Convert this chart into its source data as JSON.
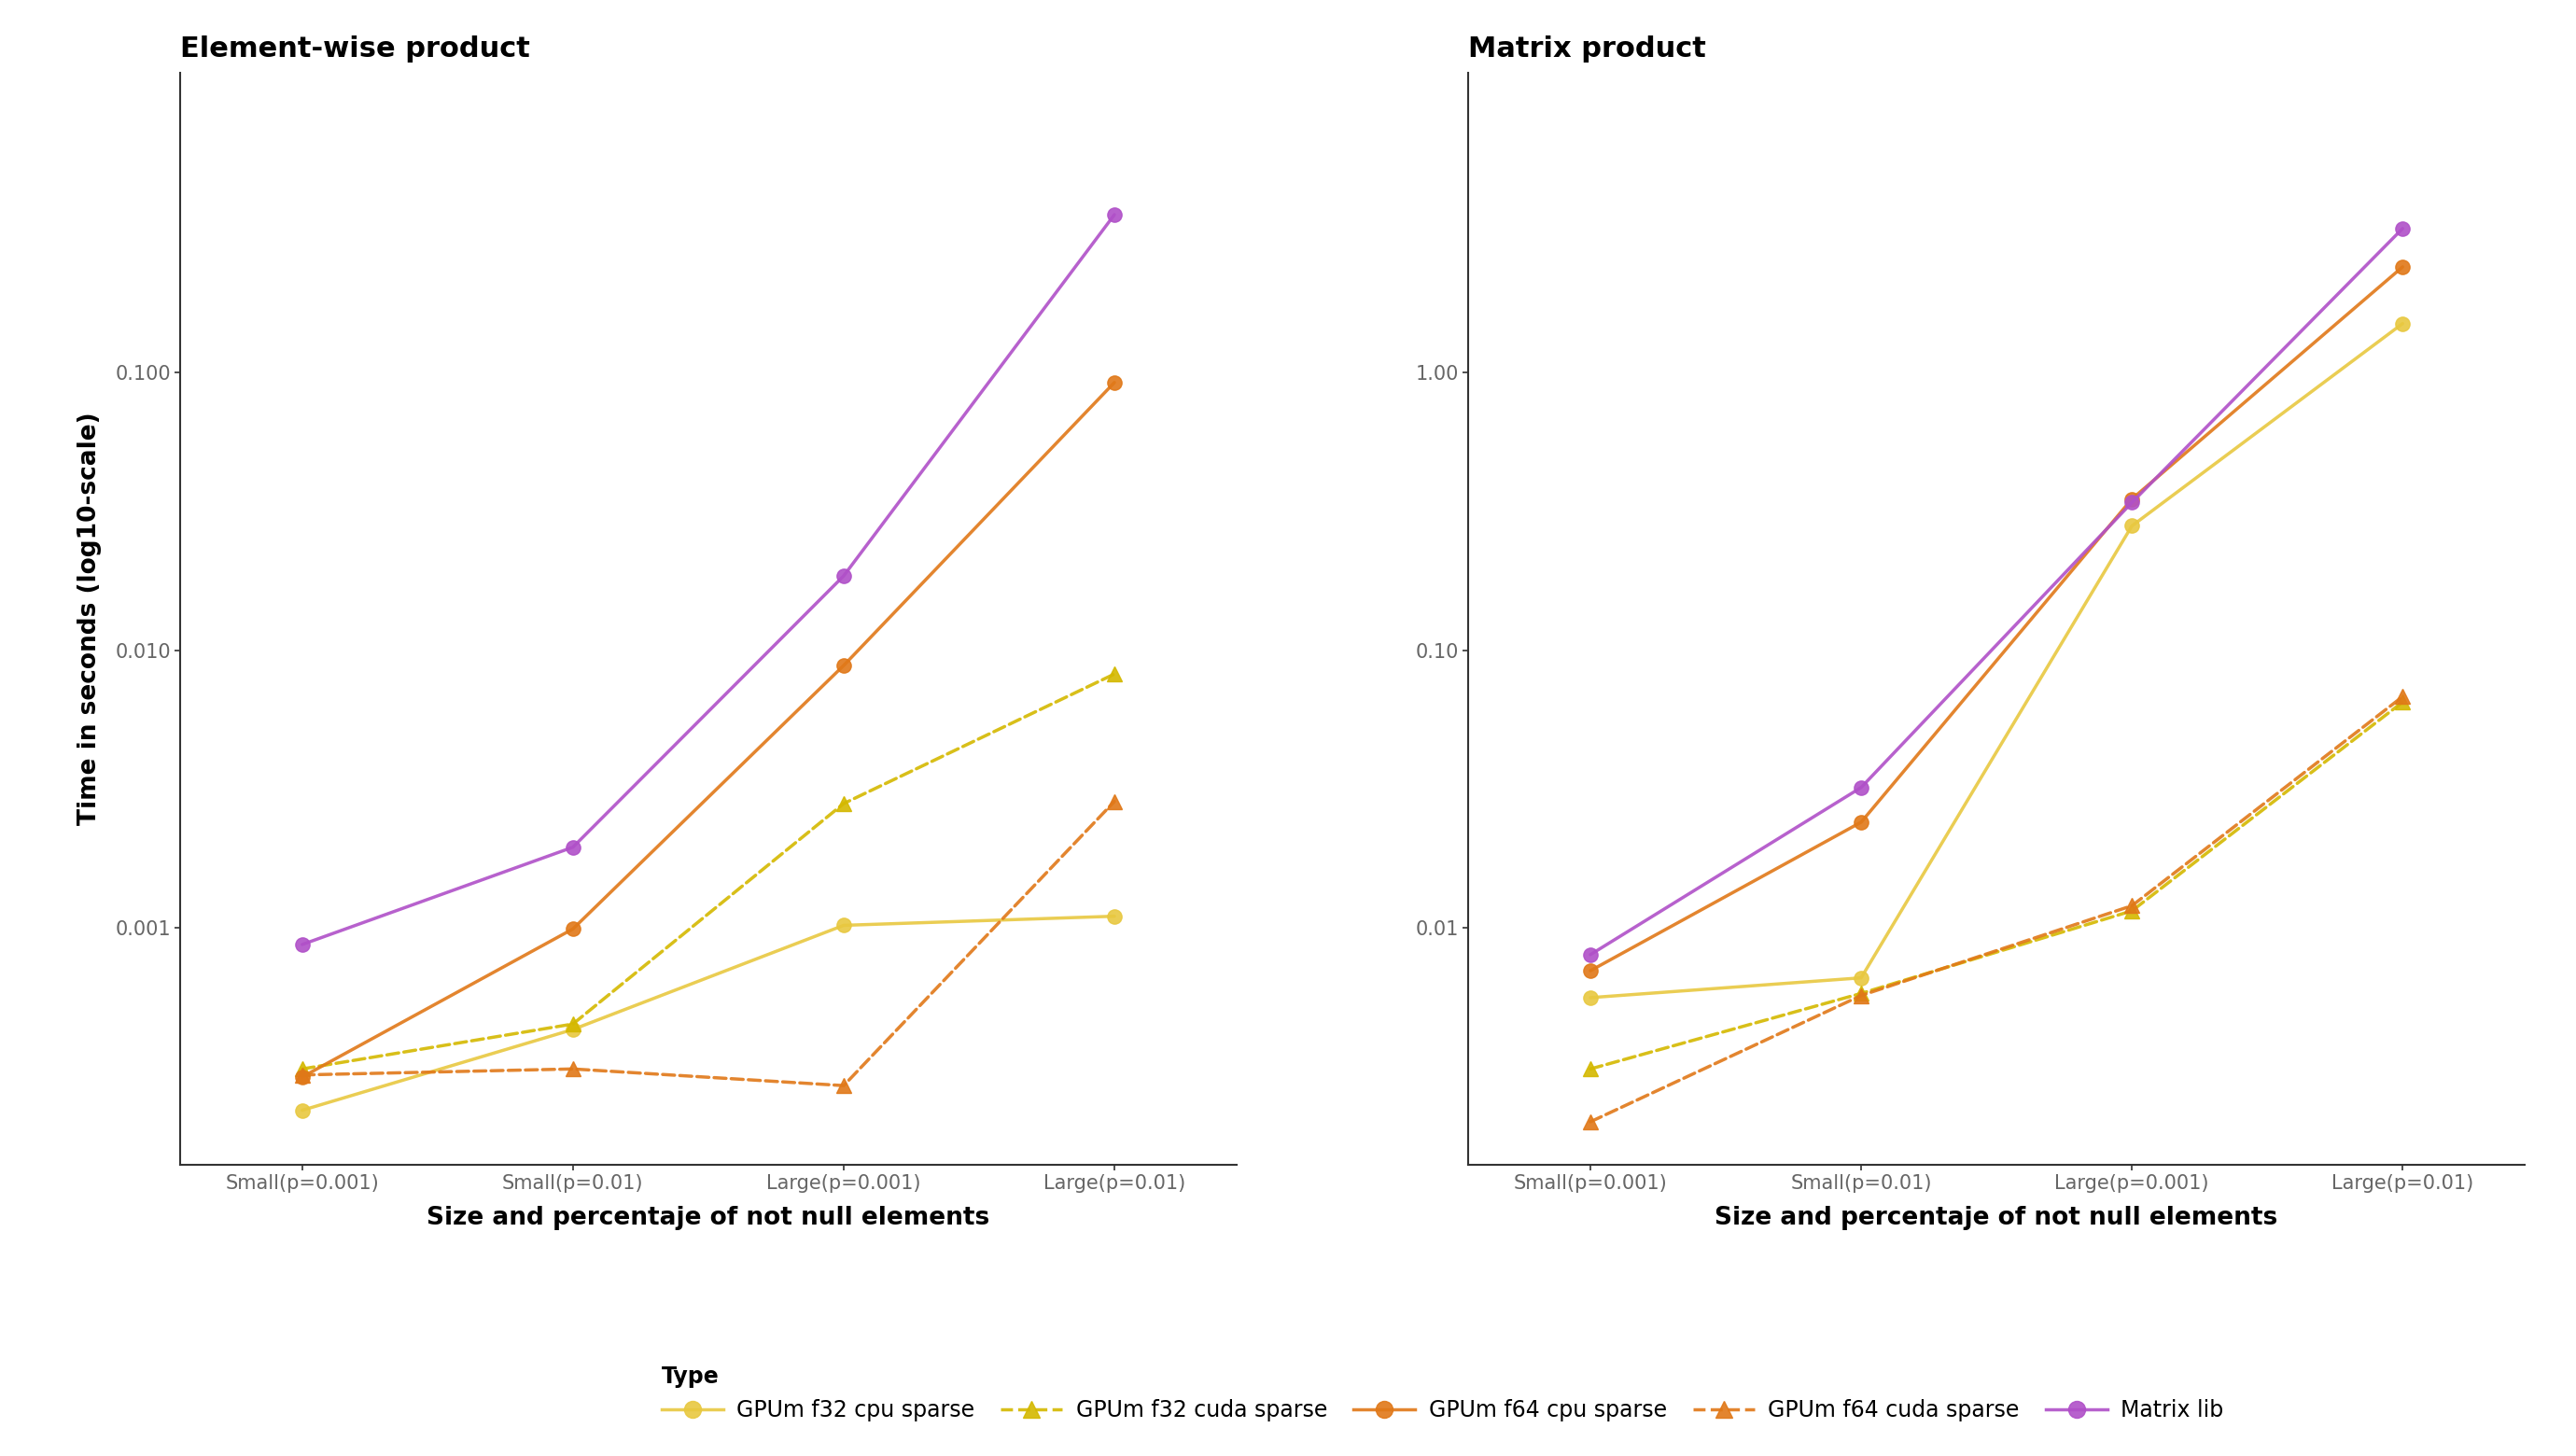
{
  "panel_titles": [
    "Element-wise product",
    "Matrix product"
  ],
  "xlabel": "Size and percentaje of not null elements",
  "ylabel": "Time in seconds (log10-scale)",
  "xtick_labels": [
    "Small(p=0.001)",
    "Small(p=0.01)",
    "Large(p=0.001)",
    "Large(p=0.01)"
  ],
  "series": [
    {
      "key": "gpum_f32_cpu",
      "label": "GPUm f32 cpu sparse",
      "color": "#E8C840",
      "linestyle": "solid",
      "marker": "o",
      "markersize": 11,
      "linewidth": 2.5,
      "element_wise": [
        0.00022,
        0.00043,
        0.00102,
        0.0011
      ],
      "matrix_product": [
        0.0056,
        0.0066,
        0.28,
        1.5
      ]
    },
    {
      "key": "gpum_f32_cuda",
      "label": "GPUm f32 cuda sparse",
      "color": "#D4B800",
      "linestyle": "dashed",
      "marker": "^",
      "markersize": 11,
      "linewidth": 2.5,
      "element_wise": [
        0.00031,
        0.00045,
        0.0028,
        0.0082
      ],
      "matrix_product": [
        0.0031,
        0.0058,
        0.0115,
        0.065
      ]
    },
    {
      "key": "gpum_f64_cpu",
      "label": "GPUm f64 cpu sparse",
      "color": "#E07818",
      "linestyle": "solid",
      "marker": "o",
      "markersize": 11,
      "linewidth": 2.5,
      "element_wise": [
        0.00029,
        0.00099,
        0.0088,
        0.092
      ],
      "matrix_product": [
        0.007,
        0.024,
        0.35,
        2.4
      ]
    },
    {
      "key": "gpum_f64_cuda",
      "label": "GPUm f64 cuda sparse",
      "color": "#E07818",
      "linestyle": "dashed",
      "marker": "^",
      "markersize": 11,
      "linewidth": 2.5,
      "element_wise": [
        0.000295,
        0.00031,
        0.00027,
        0.00285
      ],
      "matrix_product": [
        0.002,
        0.0057,
        0.012,
        0.068
      ]
    },
    {
      "key": "matrix_lib",
      "label": "Matrix lib",
      "color": "#B050C8",
      "linestyle": "solid",
      "marker": "o",
      "markersize": 11,
      "linewidth": 2.5,
      "element_wise": [
        0.00087,
        0.00195,
        0.0185,
        0.37
      ],
      "matrix_product": [
        0.008,
        0.032,
        0.34,
        3.3
      ]
    }
  ],
  "ewp_ylim": [
    0.00014,
    1.2
  ],
  "ewp_yticks": [
    0.001,
    0.01,
    0.1
  ],
  "ewp_ytick_labels": [
    "0.001",
    "0.010",
    "0.100"
  ],
  "mp_ylim": [
    0.0014,
    12.0
  ],
  "mp_yticks": [
    0.01,
    0.1,
    1.0
  ],
  "mp_ytick_labels": [
    "0.01",
    "0.10",
    "1.00"
  ],
  "background_color": "#ffffff",
  "spine_color": "#333333",
  "tick_color": "#666666",
  "title_fontsize": 22,
  "label_fontsize": 19,
  "tick_fontsize": 15,
  "legend_fontsize": 17
}
